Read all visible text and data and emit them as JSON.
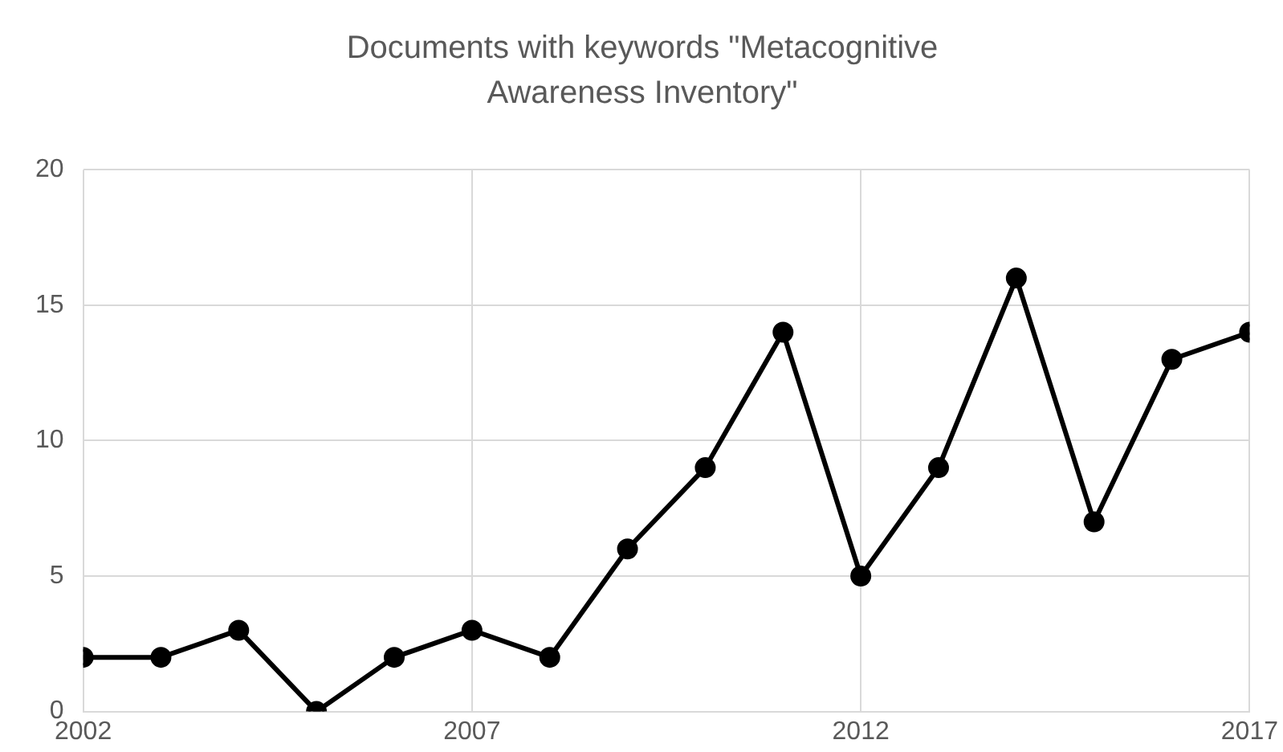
{
  "chart_data": {
    "type": "line",
    "title": "Documents with keywords \"Metacognitive Awareness Inventory\"",
    "x": [
      2002,
      2003,
      2004,
      2005,
      2006,
      2007,
      2008,
      2009,
      2010,
      2011,
      2012,
      2013,
      2014,
      2015,
      2016,
      2017
    ],
    "series": [
      {
        "color": "#000000",
        "values": [
          2,
          2,
          3,
          0,
          2,
          3,
          2,
          6,
          9,
          14,
          5,
          9,
          16,
          7,
          13,
          14
        ]
      }
    ],
    "xlim": [
      2002,
      2017
    ],
    "xticks": [
      2002,
      2007,
      2012,
      2017
    ],
    "ylim": [
      0,
      20
    ],
    "yticks": [
      0,
      5,
      10,
      15,
      20
    ],
    "grid": true,
    "legend": false,
    "marker": "circle",
    "line_style": "solid"
  }
}
